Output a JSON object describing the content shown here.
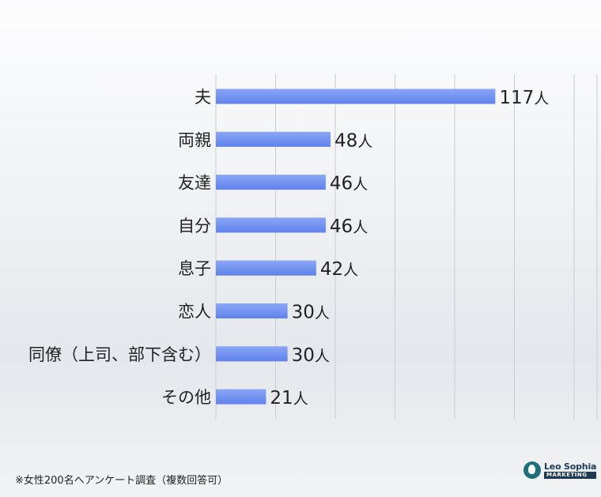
{
  "chart_data": {
    "type": "bar",
    "orientation": "horizontal",
    "categories": [
      "夫",
      "両親",
      "友達",
      "自分",
      "息子",
      "恋人",
      "同僚（上司、部下含む）",
      "その他"
    ],
    "values": [
      117,
      48,
      46,
      46,
      42,
      30,
      30,
      21
    ],
    "value_unit": "人",
    "xlim": [
      0,
      150
    ],
    "grid": true,
    "bar_color": "#6b8ff0"
  },
  "footnote": "※女性200名へアンケート調査（複数回答可）",
  "logo": {
    "name": "Leo Sophia",
    "sub": "MARKETING"
  }
}
